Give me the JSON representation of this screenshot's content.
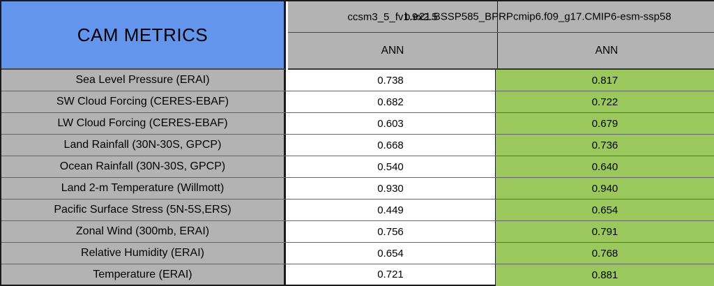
{
  "title": "CAM METRICS",
  "colors": {
    "header_blue": "#6495ED",
    "header_gray": "#b3b3b3",
    "cell_green": "#9ac85c",
    "cell_white": "#ffffff"
  },
  "chart_data": {
    "type": "table",
    "title": "CAM METRICS",
    "cases": [
      "ccsm3_5_fv1.9x2.5",
      "b.e21.BSSP585_BPRPcmip6.f09_g17.CMIP6-esm-ssp58"
    ],
    "seasons": [
      "ANN",
      "ANN"
    ],
    "rows": [
      {
        "metric": "Sea Level Pressure (ERAI)",
        "values": [
          "0.738",
          "0.817"
        ]
      },
      {
        "metric": "SW Cloud Forcing (CERES-EBAF)",
        "values": [
          "0.682",
          "0.722"
        ]
      },
      {
        "metric": "LW Cloud Forcing (CERES-EBAF)",
        "values": [
          "0.603",
          "0.679"
        ]
      },
      {
        "metric": "Land Rainfall (30N-30S, GPCP)",
        "values": [
          "0.668",
          "0.736"
        ]
      },
      {
        "metric": "Ocean Rainfall (30N-30S, GPCP)",
        "values": [
          "0.540",
          "0.640"
        ]
      },
      {
        "metric": "Land 2-m Temperature (Willmott)",
        "values": [
          "0.930",
          "0.940"
        ]
      },
      {
        "metric": "Pacific Surface Stress (5N-5S,ERS)",
        "values": [
          "0.449",
          "0.654"
        ]
      },
      {
        "metric": "Zonal Wind (300mb, ERAI)",
        "values": [
          "0.756",
          "0.791"
        ]
      },
      {
        "metric": "Relative Humidity (ERAI)",
        "values": [
          "0.654",
          "0.768"
        ]
      },
      {
        "metric": "Temperature (ERAI)",
        "values": [
          "0.721",
          "0.881"
        ]
      }
    ],
    "layout": {
      "second_run_column_highlight": "green",
      "first_run_column_background": "white",
      "header_rows": [
        "case names (overlapping, clipped at right edge)",
        "season"
      ],
      "grid": "on"
    }
  }
}
